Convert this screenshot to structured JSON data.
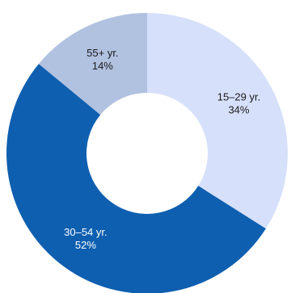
{
  "chart_data": {
    "type": "pie",
    "donut": true,
    "legend": "none",
    "slices": [
      {
        "label": "15–29 yr.",
        "value_label": "34%",
        "value": 34,
        "color": "#d6e0fa",
        "text_color": "#1a1a1a",
        "name": "15-29"
      },
      {
        "label": "30–54 yr.",
        "value_label": "52%",
        "value": 52,
        "color": "#0f5fb0",
        "text_color": "#ffffff",
        "name": "30-54"
      },
      {
        "label": "55+ yr.",
        "value_label": "14%",
        "value": 14,
        "color": "#b1c1e0",
        "text_color": "#1a1a1a",
        "name": "55-plus"
      }
    ]
  }
}
